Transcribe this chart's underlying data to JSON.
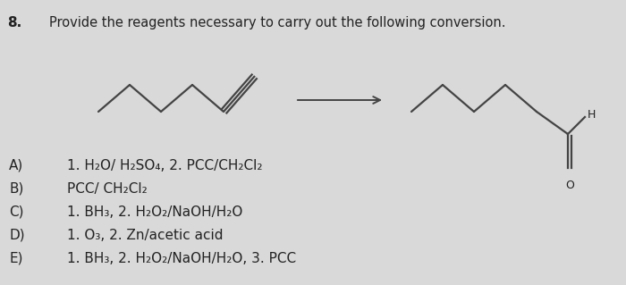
{
  "question_number": "8.",
  "question_text": "Provide the reagents necessary to carry out the following conversion.",
  "options": [
    {
      "label": "A)",
      "text": "1. H₂O/ H₂SO₄, 2. PCC/CH₂Cl₂"
    },
    {
      "label": "B)",
      "text": "PCC/ CH₂Cl₂"
    },
    {
      "label": "C)",
      "text": "1. BH₃, 2. H₂O₂/NaOH/H₂O"
    },
    {
      "label": "D)",
      "text": "1. O₃, 2. Zn/acetic acid"
    },
    {
      "label": "E)",
      "text": "1. BH₃, 2. H₂O₂/NaOH/H₂O, 3. PCC"
    }
  ],
  "bg_color": "#d9d9d9",
  "text_color": "#222222",
  "line_color": "#444444",
  "font_size_question": 10.5,
  "font_size_number": 11,
  "font_size_options": 11,
  "font_size_label": 11
}
